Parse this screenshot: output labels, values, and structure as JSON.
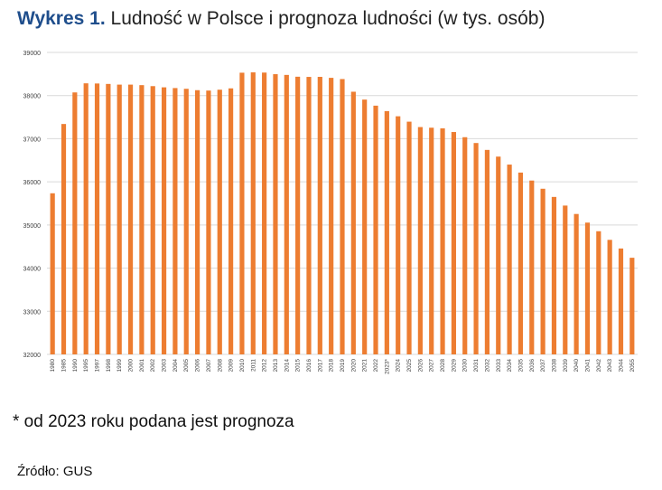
{
  "title_lead": "Wykres 1.",
  "title_rest": "Ludność w Polsce i prognoza ludności (w tys. osób)",
  "note": "* od 2023 roku podana jest prognoza",
  "source": "Źródło: GUS",
  "colors": {
    "bar": "#ED7D31",
    "grid": "#d9d9d9",
    "tick": "#404040"
  },
  "chart_data": {
    "type": "bar",
    "ylim": [
      32000,
      39000
    ],
    "yticks": [
      32000,
      33000,
      34000,
      35000,
      36000,
      37000,
      38000,
      39000
    ],
    "grid": true,
    "categories": [
      "1980",
      "1985",
      "1990",
      "1995",
      "1997",
      "1998",
      "1999",
      "2000",
      "2001",
      "2002",
      "2003",
      "2004",
      "2005",
      "2006",
      "2007",
      "2008",
      "2009",
      "2010",
      "2011",
      "2012",
      "2013",
      "2014",
      "2015",
      "2016",
      "2017",
      "2018",
      "2019",
      "2020",
      "2021",
      "2022",
      "2023*",
      "2024",
      "2025",
      "2026",
      "2027",
      "2028",
      "2029",
      "2030",
      "2031",
      "2032",
      "2033",
      "2034",
      "2035",
      "2036",
      "2037",
      "2038",
      "2039",
      "2040",
      "2041",
      "2042",
      "2043",
      "2044",
      "2055"
    ],
    "values": [
      35735,
      37341,
      38073,
      38284,
      38280,
      38270,
      38254,
      38254,
      38242,
      38219,
      38191,
      38174,
      38157,
      38125,
      38116,
      38136,
      38167,
      38530,
      38538,
      38533,
      38496,
      38479,
      38437,
      38433,
      38434,
      38411,
      38383,
      38089,
      37907,
      37766,
      37640,
      37520,
      37395,
      37270,
      37255,
      37240,
      37155,
      37035,
      36900,
      36740,
      36585,
      36400,
      36215,
      36030,
      35840,
      35650,
      35450,
      35255,
      35055,
      34855,
      34655,
      34455,
      34240
    ]
  }
}
